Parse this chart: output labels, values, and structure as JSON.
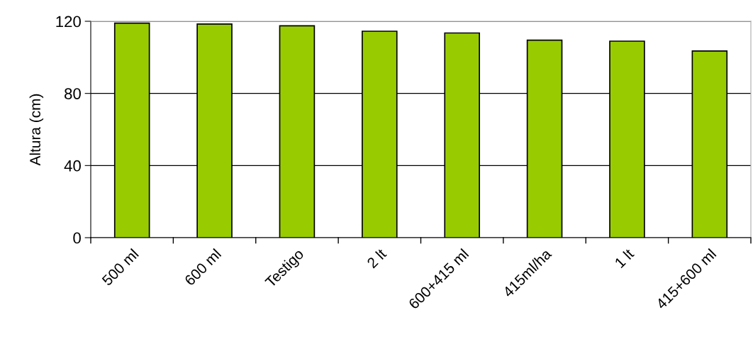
{
  "chart_data": {
    "type": "bar",
    "ylabel": "Altura (cm)",
    "categories": [
      "500 ml",
      "600 ml",
      "Testigo",
      "2 lt",
      "600+415 ml",
      "415ml/ha",
      "1 lt",
      "415+600 ml"
    ],
    "values": [
      119,
      118.5,
      117.5,
      114.5,
      113.5,
      109.5,
      109,
      103.5
    ],
    "color": "#99cc00",
    "ylim": [
      0,
      120
    ],
    "yticks": [
      0,
      40,
      80,
      120
    ],
    "grid": "y",
    "legend": false
  }
}
